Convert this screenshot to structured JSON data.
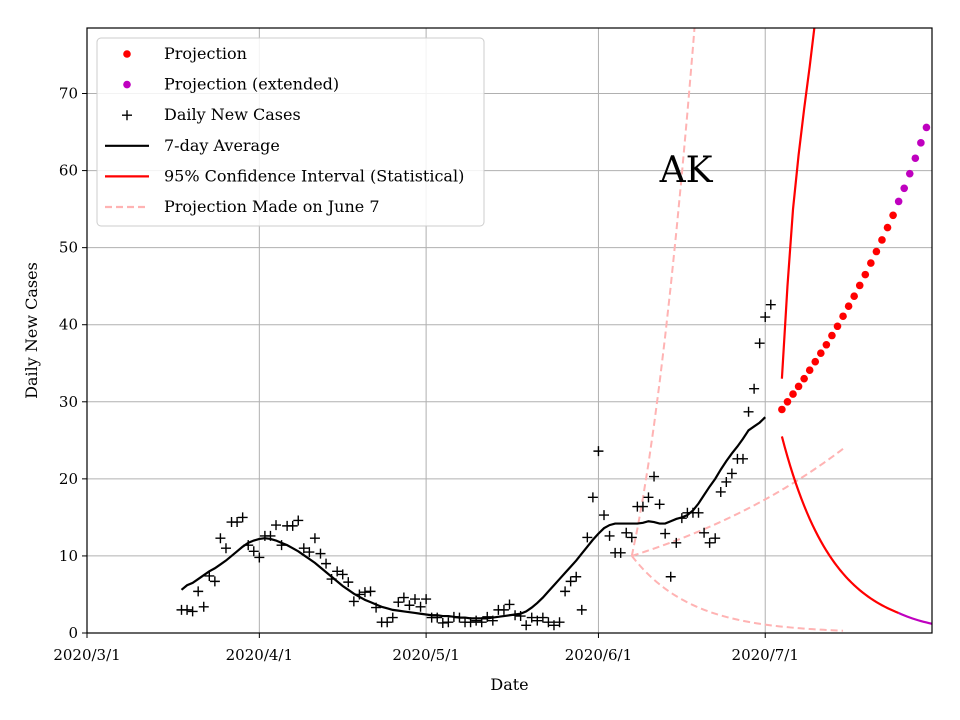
{
  "chart_data": {
    "type": "line",
    "title": "",
    "xlabel": "Date",
    "ylabel": "Daily New Cases",
    "annotation": "AK",
    "xlim": [
      "2020-03-01",
      "2020-07-31"
    ],
    "ylim": [
      0,
      78.5
    ],
    "x_ticks": [
      "2020/3/1",
      "2020/4/1",
      "2020/5/1",
      "2020/6/1",
      "2020/7/1"
    ],
    "y_ticks": [
      0,
      10,
      20,
      30,
      40,
      50,
      60,
      70
    ],
    "grid": true,
    "legend_position": "top-left",
    "colors": {
      "projection": "#ff0000",
      "extended": "#bf00bf",
      "cases": "#000000",
      "average": "#000000",
      "ci": "#ff0000",
      "june7": "#ffb3b3",
      "grid": "#b0b0b0"
    },
    "legend": [
      {
        "key": "projection",
        "label": "Projection",
        "marker": "dot"
      },
      {
        "key": "extended",
        "label": "Projection (extended)",
        "marker": "dot"
      },
      {
        "key": "cases",
        "label": "Daily New Cases",
        "marker": "plus"
      },
      {
        "key": "average",
        "label": "7-day Average",
        "marker": "line"
      },
      {
        "key": "ci",
        "label": "95% Confidence Interval (Statistical)",
        "marker": "line"
      },
      {
        "key": "june7",
        "label": "Projection Made on June 7",
        "marker": "dashed"
      }
    ],
    "daily_new_cases": {
      "start": "2020-03-18",
      "values": [
        3.0,
        3.0,
        2.8,
        5.4,
        3.4,
        7.4,
        6.7,
        12.3,
        11.0,
        14.4,
        14.4,
        15.0,
        11.4,
        10.6,
        9.8,
        12.6,
        12.6,
        14.0,
        11.4,
        13.9,
        13.9,
        14.6,
        11.0,
        10.5,
        12.3,
        10.3,
        9.0,
        7.0,
        8.0,
        7.6,
        6.6,
        4.1,
        5.0,
        5.3,
        5.4,
        3.3,
        1.4,
        1.4,
        2.0,
        4.0,
        4.6,
        3.6,
        4.4,
        3.4,
        4.4,
        2.0,
        2.0,
        1.3,
        1.4,
        2.1,
        2.0,
        1.4,
        1.4,
        1.6,
        1.4,
        2.1,
        1.6,
        3.0,
        3.0,
        3.7,
        2.3,
        2.2,
        1.0,
        2.0,
        1.6,
        2.0,
        1.4,
        1.0,
        1.4,
        5.4,
        6.7,
        7.3,
        3.0,
        12.4,
        17.6,
        23.6,
        15.3,
        12.6,
        10.4,
        10.4,
        13.0,
        12.4,
        16.4,
        16.4,
        17.6,
        20.3,
        16.7,
        12.9,
        7.3,
        11.7,
        14.9,
        15.6,
        15.6,
        15.6,
        13.0,
        11.7,
        12.3,
        18.3,
        19.6,
        20.7,
        22.6,
        22.6,
        28.7,
        31.7,
        37.6,
        41.0,
        42.6
      ]
    },
    "seven_day_average": {
      "start": "2020-03-18",
      "values": [
        5.6,
        6.2,
        6.5,
        7.0,
        7.5,
        8.0,
        8.4,
        8.9,
        9.4,
        10.0,
        10.6,
        11.2,
        11.7,
        12.0,
        12.2,
        12.3,
        12.2,
        12.0,
        11.7,
        11.4,
        11.0,
        10.6,
        10.1,
        9.6,
        9.1,
        8.5,
        7.9,
        7.3,
        6.7,
        6.1,
        5.6,
        5.1,
        4.7,
        4.3,
        4.0,
        3.7,
        3.4,
        3.2,
        3.0,
        2.9,
        2.8,
        2.7,
        2.6,
        2.5,
        2.4,
        2.3,
        2.3,
        2.2,
        2.2,
        2.1,
        2.0,
        2.0,
        1.9,
        1.9,
        1.9,
        1.9,
        2.0,
        2.1,
        2.2,
        2.3,
        2.4,
        2.5,
        2.8,
        3.3,
        3.9,
        4.6,
        5.4,
        6.2,
        7.0,
        7.8,
        8.6,
        9.4,
        10.3,
        11.2,
        12.1,
        12.9,
        13.6,
        14.0,
        14.2,
        14.2,
        14.2,
        14.2,
        14.2,
        14.3,
        14.5,
        14.4,
        14.2,
        14.2,
        14.5,
        14.8,
        15.0,
        15.3,
        15.9,
        16.8,
        17.9,
        19.0,
        20.0,
        21.2,
        22.3,
        23.3,
        24.2,
        25.2,
        26.3,
        26.8,
        27.3,
        28.0
      ]
    },
    "projection": {
      "start": "2020-07-04",
      "values": [
        29.0,
        30.0,
        31.0,
        32.0,
        33.0,
        34.1,
        35.2,
        36.3,
        37.4,
        38.6,
        39.8,
        41.1,
        42.4,
        43.7,
        45.1,
        46.5,
        48.0,
        49.5,
        51.0,
        52.6,
        54.2
      ]
    },
    "projection_extended": {
      "start": "2020-07-25",
      "values": [
        56.0,
        57.7,
        59.6,
        61.6,
        63.6,
        65.6
      ]
    },
    "ci_upper": {
      "start": "2020-07-04",
      "values": [
        33.0,
        45.0,
        55.0,
        62.0,
        68.0,
        73.5,
        79.5
      ]
    },
    "ci_lower": {
      "start": "2020-07-04",
      "days": 21,
      "from": 25.5,
      "to": 2.6,
      "ext_days": 6,
      "ext_to": 1.2
    },
    "june7_projection": {
      "start": "2020-06-07",
      "days": 38,
      "center_from": 10.0,
      "center_to": 23.9,
      "upper_values": [
        10.0,
        13.5,
        17.5,
        22.0,
        27.0,
        32.5,
        38.5,
        45.0,
        52.0,
        59.5,
        67.5,
        76.0,
        85.0
      ],
      "lower_from": 10.0,
      "lower_to": 0.3
    }
  }
}
